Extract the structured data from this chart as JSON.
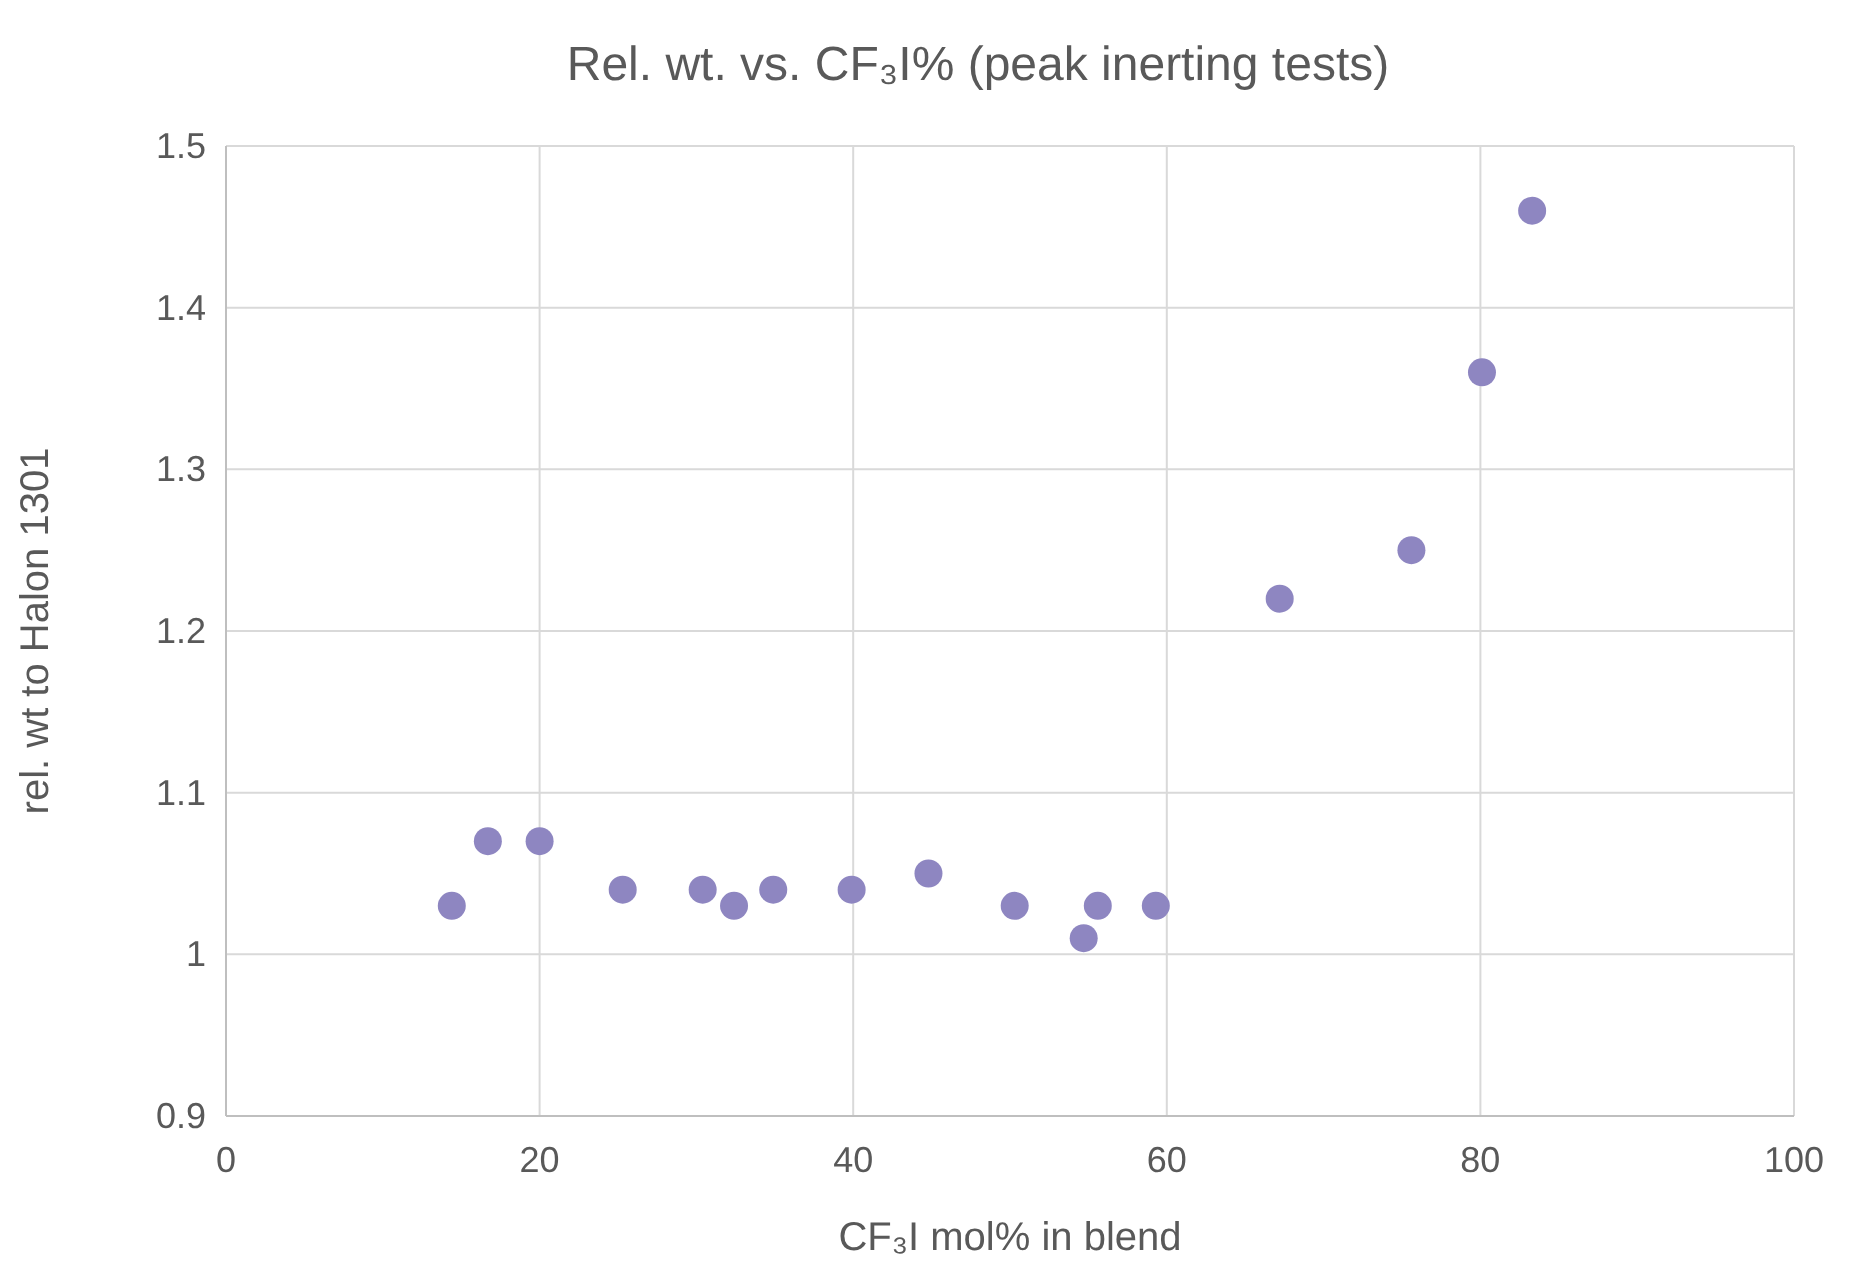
{
  "chart_data": {
    "type": "scatter",
    "title": "Rel. wt. vs. CF₃I% (peak inerting tests)",
    "xlabel": "CF₃I mol% in blend",
    "ylabel": "rel. wt to Halon 1301",
    "x": [
      14.4,
      16.7,
      20.0,
      25.3,
      30.4,
      32.4,
      34.9,
      39.9,
      44.8,
      50.3,
      54.7,
      55.6,
      59.3,
      67.2,
      75.6,
      80.1,
      83.3
    ],
    "series": [
      {
        "color": "#8e86c1",
        "values": [
          1.03,
          1.07,
          1.07,
          1.04,
          1.04,
          1.03,
          1.04,
          1.04,
          1.05,
          1.03,
          1.01,
          1.03,
          1.03,
          1.22,
          1.25,
          1.36,
          1.46
        ]
      }
    ],
    "xlim": [
      0,
      100
    ],
    "xticks": [
      0,
      20,
      40,
      60,
      80,
      100
    ],
    "ylim": [
      0.9,
      1.5
    ],
    "yticks": [
      0.9,
      1,
      1.1,
      1.2,
      1.3,
      1.4,
      1.5
    ],
    "grid": true,
    "marker": "circle"
  }
}
